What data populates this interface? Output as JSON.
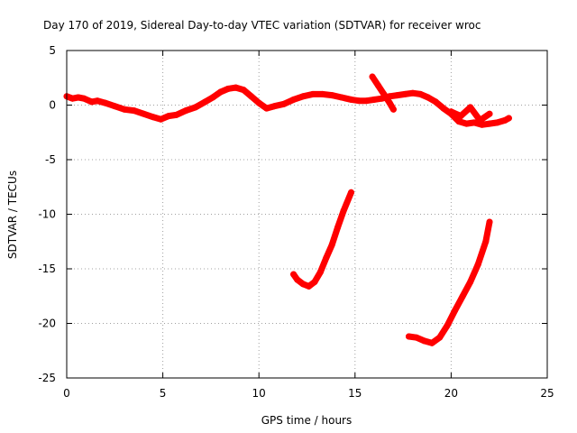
{
  "chart_data": {
    "type": "scatter",
    "title": "Day 170 of 2019, Sidereal Day-to-day VTEC variation (SDTVAR) for receiver wroc",
    "xlabel": "GPS time / hours",
    "ylabel": "SDTVAR / TECUs",
    "xlim": [
      0,
      25
    ],
    "ylim": [
      -25,
      5
    ],
    "xticks": [
      0,
      5,
      10,
      15,
      20,
      25
    ],
    "yticks": [
      5,
      0,
      -5,
      -10,
      -15,
      -20,
      -25
    ],
    "grid": true,
    "series": [
      {
        "name": "main-band",
        "color": "#ff0000",
        "x": [
          0,
          0.3,
          0.6,
          0.9,
          1.3,
          1.6,
          2.0,
          2.5,
          3.0,
          3.5,
          4.0,
          4.5,
          4.9,
          5.3,
          5.7,
          6.2,
          6.7,
          7.2,
          7.6,
          8.0,
          8.4,
          8.8,
          9.2,
          9.6,
          10.0,
          10.4,
          10.8,
          11.3,
          11.8,
          12.3,
          12.8,
          13.3,
          13.8,
          14.3,
          14.8,
          15.2,
          15.6,
          16.0,
          16.4,
          16.8,
          17.2,
          17.6,
          18.0,
          18.4,
          18.8,
          19.2,
          19.6,
          20.0,
          20.4,
          20.8,
          21.2,
          21.6,
          22.0,
          22.4,
          22.8,
          23.0
        ],
        "y": [
          0.8,
          0.6,
          0.7,
          0.6,
          0.3,
          0.4,
          0.2,
          -0.1,
          -0.4,
          -0.5,
          -0.8,
          -1.1,
          -1.3,
          -1.0,
          -0.9,
          -0.5,
          -0.2,
          0.3,
          0.7,
          1.2,
          1.5,
          1.6,
          1.4,
          0.8,
          0.2,
          -0.3,
          -0.1,
          0.1,
          0.5,
          0.8,
          1.0,
          1.0,
          0.9,
          0.7,
          0.5,
          0.4,
          0.4,
          0.5,
          0.6,
          0.8,
          0.9,
          1.0,
          1.1,
          1.0,
          0.7,
          0.3,
          -0.3,
          -0.8,
          -1.5,
          -1.7,
          -1.6,
          -1.8,
          -1.7,
          -1.6,
          -1.4,
          -1.2
        ]
      },
      {
        "name": "upper-spur",
        "color": "#ff0000",
        "x": [
          15.9,
          16.2,
          16.5,
          16.8,
          17.0
        ],
        "y": [
          2.6,
          1.8,
          1.0,
          0.2,
          -0.4
        ]
      },
      {
        "name": "right-spur",
        "color": "#ff0000",
        "x": [
          20.0,
          20.5,
          21.0,
          21.5,
          22.0
        ],
        "y": [
          -0.6,
          -1.0,
          -0.2,
          -1.4,
          -0.8
        ]
      },
      {
        "name": "arc-1",
        "color": "#ff0000",
        "x": [
          11.8,
          12.0,
          12.3,
          12.6,
          12.9,
          13.2,
          13.5,
          13.8,
          14.1,
          14.4,
          14.8
        ],
        "y": [
          -15.5,
          -16.0,
          -16.4,
          -16.6,
          -16.2,
          -15.3,
          -14.0,
          -12.8,
          -11.2,
          -9.7,
          -8.0
        ]
      },
      {
        "name": "arc-2",
        "color": "#ff0000",
        "x": [
          17.8,
          18.2,
          18.6,
          19.0,
          19.4,
          19.8,
          20.2,
          20.6,
          21.0,
          21.4,
          21.8,
          22.0
        ],
        "y": [
          -21.2,
          -21.3,
          -21.6,
          -21.8,
          -21.3,
          -20.2,
          -18.8,
          -17.5,
          -16.2,
          -14.6,
          -12.5,
          -10.7
        ]
      }
    ]
  }
}
